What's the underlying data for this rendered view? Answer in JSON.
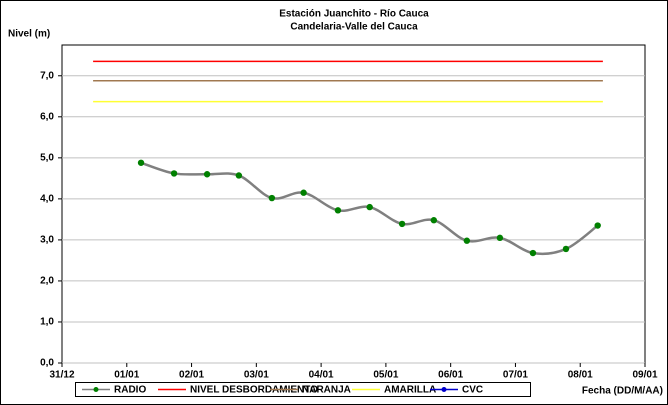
{
  "chart_data": {
    "type": "line",
    "title": "Estación Juanchito - Río Cauca",
    "subtitle": "Candelaria-Valle del Cauca",
    "y_label": "Nivel (m)",
    "x_label": "Fecha (DD/M/AA)",
    "xlim": [
      0,
      9
    ],
    "xticks": [
      {
        "value": 0,
        "label": "31/12"
      },
      {
        "value": 1,
        "label": "01/01"
      },
      {
        "value": 2,
        "label": "02/01"
      },
      {
        "value": 3,
        "label": "03/01"
      },
      {
        "value": 4,
        "label": "04/01"
      },
      {
        "value": 5,
        "label": "05/01"
      },
      {
        "value": 6,
        "label": "06/01"
      },
      {
        "value": 7,
        "label": "07/01"
      },
      {
        "value": 8,
        "label": "08/01"
      },
      {
        "value": 9,
        "label": "09/01"
      }
    ],
    "ylim": [
      0,
      7.75
    ],
    "yticks": [
      {
        "value": 0,
        "label": "0,0"
      },
      {
        "value": 1,
        "label": "1,0"
      },
      {
        "value": 2,
        "label": "2,0"
      },
      {
        "value": 3,
        "label": "3,0"
      },
      {
        "value": 4,
        "label": "4,0"
      },
      {
        "value": 5,
        "label": "5,0"
      },
      {
        "value": 6,
        "label": "6,0"
      },
      {
        "value": 7,
        "label": "7,0"
      }
    ],
    "grid": true,
    "legend": "bottom",
    "series": [
      {
        "name": "RADIO",
        "color": "#808080",
        "marker_color": "#008000",
        "x": [
          1.22,
          1.73,
          2.24,
          2.73,
          3.24,
          3.73,
          4.26,
          4.75,
          5.25,
          5.74,
          6.25,
          6.76,
          7.27,
          7.78,
          8.27
        ],
        "values": [
          4.88,
          4.62,
          4.6,
          4.57,
          4.02,
          4.15,
          3.72,
          3.8,
          3.39,
          3.48,
          2.98,
          3.05,
          2.68,
          2.78,
          3.35
        ]
      },
      {
        "name": "NIVEL DESBORDAMIENTO",
        "color": "#ff0000",
        "x": [
          0.48,
          8.35
        ],
        "values": [
          7.35,
          7.35
        ]
      },
      {
        "name": "NARANJA",
        "color": "#a07850",
        "x": [
          0.48,
          8.35
        ],
        "values": [
          6.88,
          6.88
        ]
      },
      {
        "name": "AMARILLA",
        "color": "#ffff33",
        "x": [
          0.48,
          8.35
        ],
        "values": [
          6.37,
          6.37
        ]
      },
      {
        "name": "CVC",
        "color": "#0000cc",
        "marker_color": "#0000cc",
        "x": [],
        "values": []
      }
    ]
  }
}
